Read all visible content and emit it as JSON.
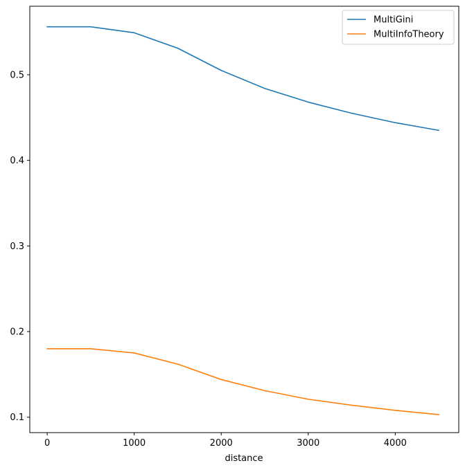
{
  "chart_data": {
    "type": "line",
    "title": "",
    "xlabel": "distance",
    "ylabel": "",
    "x": [
      0,
      500,
      1000,
      1500,
      2000,
      2500,
      3000,
      3500,
      4000,
      4500
    ],
    "xlim": [
      -200,
      4730
    ],
    "ylim": [
      0.082,
      0.58
    ],
    "xticks": [
      0,
      1000,
      2000,
      3000,
      4000
    ],
    "xtick_labels": [
      "0",
      "1000",
      "2000",
      "3000",
      "4000"
    ],
    "yticks": [
      0.1,
      0.2,
      0.3,
      0.4,
      0.5
    ],
    "ytick_labels": [
      "0.1",
      "0.2",
      "0.3",
      "0.4",
      "0.5"
    ],
    "grid": false,
    "legend_position": "top-right",
    "series": [
      {
        "name": "MultiGini",
        "color": "#1f77b4",
        "values": [
          0.556,
          0.556,
          0.549,
          0.531,
          0.505,
          0.484,
          0.468,
          0.455,
          0.444,
          0.435
        ]
      },
      {
        "name": "MultiInfoTheory",
        "color": "#ff7f0e",
        "values": [
          0.18,
          0.18,
          0.175,
          0.162,
          0.144,
          0.131,
          0.121,
          0.114,
          0.108,
          0.103
        ]
      }
    ]
  }
}
